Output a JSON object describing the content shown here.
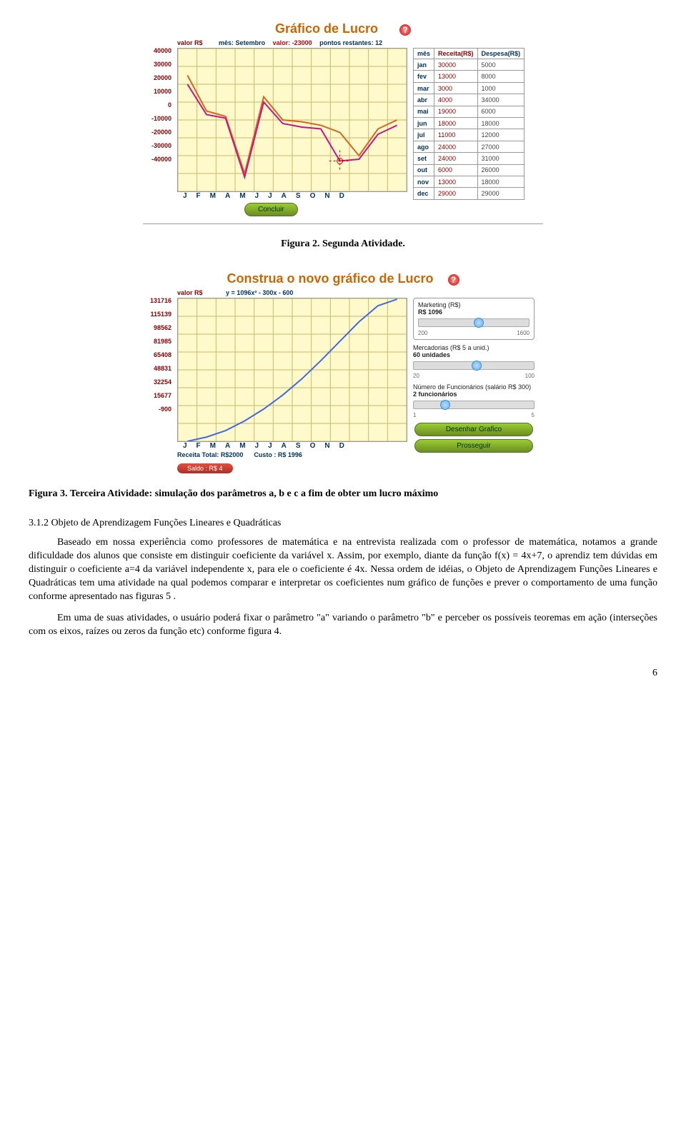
{
  "chart1": {
    "title": "Gráfico de Lucro",
    "meta": {
      "mes": "mês: Setembro",
      "valor": "valor: -23000",
      "pontos": "pontos restantes: 12"
    },
    "y_title": "valor R$",
    "y_ticks": [
      "40000",
      "30000",
      "20000",
      "10000",
      "0",
      "-10000",
      "-20000",
      "-30000",
      "-40000"
    ],
    "x_ticks": "JFMAMJJASOND",
    "table": {
      "headers": [
        "mês",
        "Receita(R$)",
        "Despesa(R$)"
      ],
      "rows": [
        [
          "jan",
          "30000",
          "5000"
        ],
        [
          "fev",
          "13000",
          "8000"
        ],
        [
          "mar",
          "3000",
          "1000"
        ],
        [
          "abr",
          "4000",
          "34000"
        ],
        [
          "mai",
          "19000",
          "6000"
        ],
        [
          "jun",
          "18000",
          "18000"
        ],
        [
          "jul",
          "11000",
          "12000"
        ],
        [
          "ago",
          "24000",
          "27000"
        ],
        [
          "set",
          "24000",
          "31000"
        ],
        [
          "out",
          "6000",
          "26000"
        ],
        [
          "nov",
          "13000",
          "18000"
        ],
        [
          "dec",
          "29000",
          "29000"
        ]
      ]
    },
    "concluir": "Concluir",
    "caption": "Figura 2. Segunda Atividade.",
    "series": {
      "orange": [
        25000,
        5000,
        2000,
        -30000,
        13000,
        0,
        -1000,
        -3000,
        -7000,
        -20000,
        -5000,
        0
      ],
      "magenta": [
        20000,
        3000,
        1000,
        -32000,
        10000,
        -2000,
        -4000,
        -5000,
        -23000,
        -22000,
        -8000,
        -3000
      ]
    },
    "colors": {
      "line1": "#d2691e",
      "line2": "#c71585",
      "grid_bg": "#fff9cc",
      "grid_line": "#c9b96e"
    }
  },
  "chart2": {
    "title": "Construa o novo gráfico de Lucro",
    "formula": "y = 1096x² - 300x - 600",
    "y_title": "valor R$",
    "y_ticks": [
      "131716",
      "115139",
      "98562",
      "81985",
      "65408",
      "48831",
      "32254",
      "15677",
      "-900"
    ],
    "x_ticks": "JFMAMJJASOND",
    "footer": {
      "receita": "Receita Total: R$2000",
      "custo": "Custo : R$ 1996"
    },
    "saldo": "Saldo : R$ 4",
    "panel": {
      "marketing_label": "Marketing (R$)",
      "marketing_val": "R$ 1096",
      "marketing_range": [
        "200",
        "1600"
      ],
      "merc_label": "Mercadorias (R$ 5 a unid.)",
      "merc_val": "60 unidades",
      "merc_range": [
        "20",
        "100"
      ],
      "func_label": "Número de Funcionários (salário R$ 300)",
      "func_val": "2 funcionários",
      "func_range": [
        "1",
        "5"
      ]
    },
    "btn_desenhar": "Desenhar Grafico",
    "btn_prosseguir": "Prosseguir",
    "curve": [
      -900,
      3000,
      9000,
      18000,
      29000,
      42000,
      57000,
      74000,
      92000,
      110000,
      125000,
      131000
    ],
    "colors": {
      "curve": "#4169e1",
      "grid_bg": "#fff9cc"
    },
    "caption": "Figura 3. Terceira Atividade: simulação dos parâmetros a, b e c a fim de obter um lucro máximo"
  },
  "section": {
    "heading": "3.1.2 Objeto de Aprendizagem Funções Lineares e Quadráticas",
    "p1": "Baseado em nossa experiência como professores de matemática e na entrevista realizada com o professor de matemática, notamos a grande dificuldade dos alunos que consiste em distinguir coeficiente da variável x. Assim, por exemplo, diante da função f(x) = 4x+7, o aprendiz tem dúvidas em distinguir o coeficiente a=4 da variável independente x, para ele o coeficiente é 4x. Nessa ordem de idéias, o Objeto de Aprendizagem Funções Lineares e Quadráticas tem uma atividade na qual podemos comparar e interpretar os coeficientes num gráfico de funções e prever o comportamento de uma função conforme apresentado nas figuras 5 .",
    "p2": "Em uma de suas atividades, o usuário poderá fixar o parâmetro \"a\" variando o parâmetro \"b\" e perceber os possíveis teoremas em ação (interseções com os eixos, raízes ou zeros da função etc) conforme figura 4."
  },
  "page_number": "6"
}
